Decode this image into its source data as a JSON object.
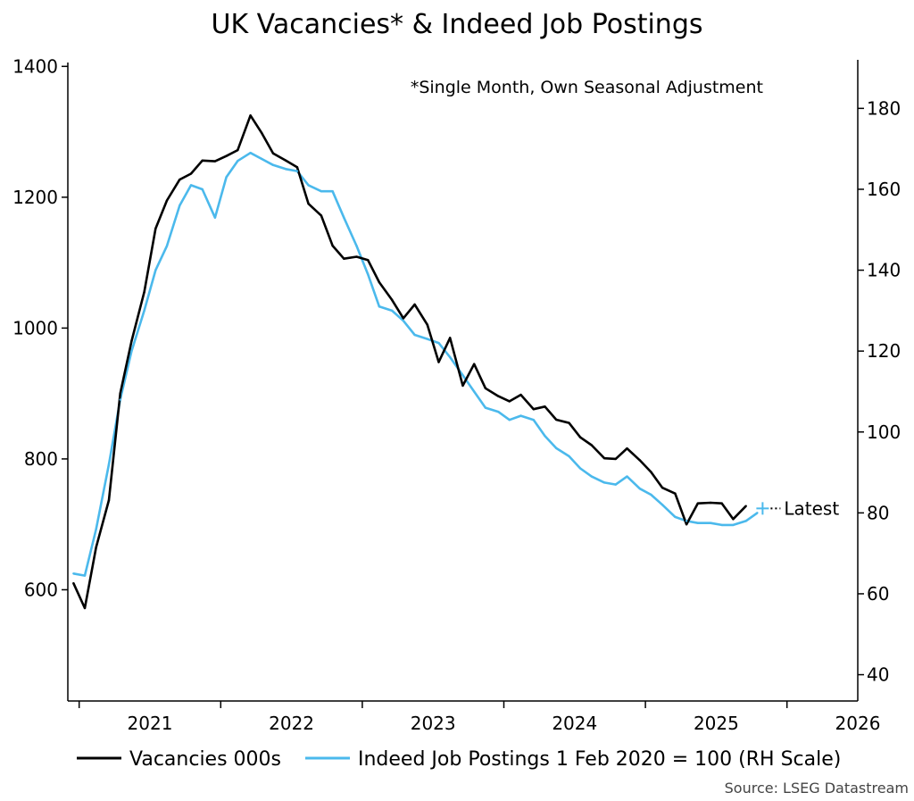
{
  "chart_data": {
    "type": "line",
    "title": "UK Vacancies* & Indeed Job Postings",
    "note": "*Single Month, Own Seasonal Adjustment",
    "source": "Source: LSEG Datastream",
    "latest_label": "Latest",
    "y_left": {
      "lim": [
        430,
        1410
      ],
      "ticks": [
        "600",
        "800",
        "1000",
        "1200",
        "1400"
      ]
    },
    "y_right": {
      "lim": [
        33.5,
        192
      ],
      "ticks": [
        "40",
        "60",
        "80",
        "100",
        "120",
        "140",
        "160",
        "180"
      ]
    },
    "x_axis": {
      "lim": [
        2020.92,
        2026.5
      ],
      "ticks": [
        "2021",
        "2022",
        "2023",
        "2024",
        "2025",
        "2026"
      ]
    },
    "colors": {
      "vacancies": "#000000",
      "indeed": "#4bb9ec"
    },
    "series": [
      {
        "name": "Vacancies 000s",
        "axis": "left",
        "x": [
          2020.96,
          2021.04,
          2021.12,
          2021.21,
          2021.29,
          2021.37,
          2021.46,
          2021.54,
          2021.62,
          2021.71,
          2021.79,
          2021.87,
          2021.96,
          2022.04,
          2022.12,
          2022.21,
          2022.29,
          2022.37,
          2022.46,
          2022.54,
          2022.62,
          2022.71,
          2022.79,
          2022.87,
          2022.96,
          2023.04,
          2023.12,
          2023.21,
          2023.29,
          2023.37,
          2023.46,
          2023.54,
          2023.62,
          2023.71,
          2023.79,
          2023.87,
          2023.96,
          2024.04,
          2024.12,
          2024.21,
          2024.29,
          2024.37,
          2024.46,
          2024.54,
          2024.62,
          2024.71,
          2024.79,
          2024.87,
          2024.96,
          2025.04,
          2025.12,
          2025.21,
          2025.29,
          2025.37,
          2025.46,
          2025.54,
          2025.62,
          2025.71
        ],
        "values": [
          610,
          572,
          665,
          737,
          900,
          980,
          1055,
          1152,
          1195,
          1227,
          1236,
          1256,
          1255,
          1263,
          1272,
          1325,
          1298,
          1267,
          1256,
          1246,
          1190,
          1172,
          1126,
          1106,
          1109,
          1104,
          1070,
          1043,
          1015,
          1036,
          1005,
          948,
          985,
          912,
          945,
          908,
          896,
          888,
          898,
          876,
          880,
          860,
          855,
          833,
          821,
          801,
          800,
          816,
          798,
          780,
          756,
          747,
          700,
          732,
          733,
          732,
          708,
          728
        ]
      },
      {
        "name": "Indeed Job Postings 1 Feb 2020 = 100 (RH Scale)",
        "axis": "right",
        "x": [
          2020.96,
          2021.04,
          2021.12,
          2021.21,
          2021.29,
          2021.37,
          2021.46,
          2021.54,
          2021.62,
          2021.71,
          2021.79,
          2021.87,
          2021.96,
          2022.04,
          2022.12,
          2022.21,
          2022.29,
          2022.37,
          2022.46,
          2022.54,
          2022.62,
          2022.71,
          2022.79,
          2022.87,
          2022.96,
          2023.04,
          2023.12,
          2023.21,
          2023.29,
          2023.37,
          2023.46,
          2023.54,
          2023.62,
          2023.71,
          2023.79,
          2023.87,
          2023.96,
          2024.04,
          2024.12,
          2024.21,
          2024.29,
          2024.37,
          2024.46,
          2024.54,
          2024.62,
          2024.71,
          2024.79,
          2024.87,
          2024.96,
          2025.04,
          2025.12,
          2025.21,
          2025.29,
          2025.37,
          2025.46,
          2025.54,
          2025.62,
          2025.71,
          2025.79
        ],
        "values": [
          65,
          64.5,
          76,
          92,
          108,
          120,
          130,
          140,
          146,
          156,
          161,
          160,
          153,
          163,
          167,
          169,
          167.5,
          166,
          165,
          164.5,
          161,
          159.5,
          159.5,
          153,
          146,
          139,
          131,
          130,
          127.5,
          124,
          123,
          122,
          118.5,
          114,
          110,
          106,
          105,
          103,
          104,
          103,
          99,
          96,
          94,
          91,
          89,
          87.5,
          87,
          89,
          86,
          84.5,
          82,
          79,
          78,
          77.5,
          77.5,
          77,
          77,
          78,
          80
        ]
      }
    ]
  }
}
